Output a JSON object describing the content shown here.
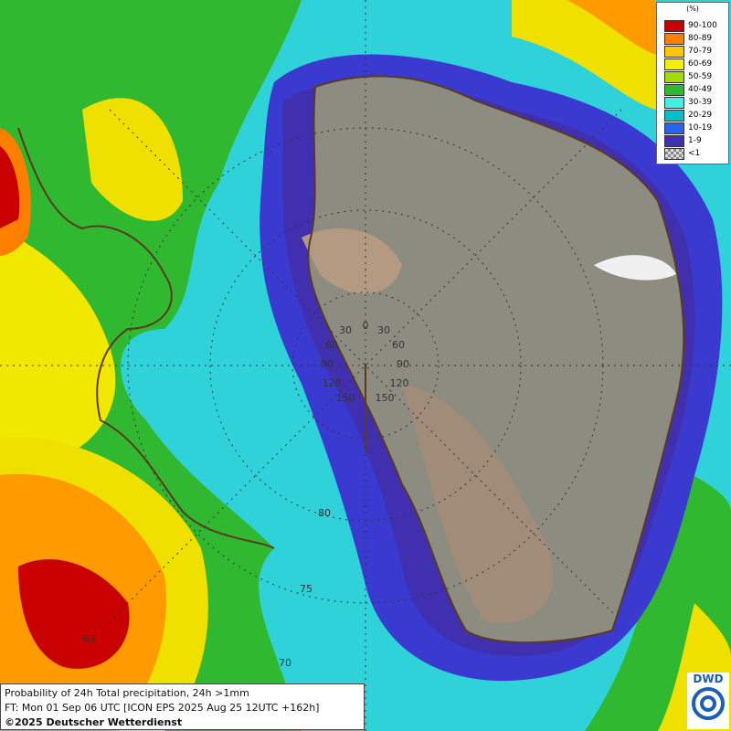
{
  "legend": {
    "unit": "(%)",
    "items": [
      {
        "label": "90-100",
        "color": "#c80000"
      },
      {
        "label": "80-89",
        "color": "#ff8000"
      },
      {
        "label": "70-79",
        "color": "#ffc800"
      },
      {
        "label": "60-69",
        "color": "#f0f000"
      },
      {
        "label": "50-59",
        "color": "#a0dc00"
      },
      {
        "label": "40-49",
        "color": "#30b830"
      },
      {
        "label": "30-39",
        "color": "#40f0e0"
      },
      {
        "label": "20-29",
        "color": "#00c0c8"
      },
      {
        "label": "10-19",
        "color": "#2864f0"
      },
      {
        "label": "1-9",
        "color": "#4030b0"
      },
      {
        "label": "<1",
        "color": "#bbbbbb"
      }
    ]
  },
  "grid_labels": [
    "30",
    "0",
    "30",
    "60",
    "60",
    "90",
    "90",
    "120",
    "120",
    "150",
    "150",
    "80",
    "75",
    "70",
    "65"
  ],
  "caption": {
    "line1": "Probability of 24h Total precipitation, 24h >1mm",
    "line2": "FT: Mon 01 Sep 06 UTC [ICON EPS 2025 Aug 25 12UTC +162h]",
    "line3": "©2025 Deutscher Wetterdienst"
  },
  "logo": "DWD"
}
